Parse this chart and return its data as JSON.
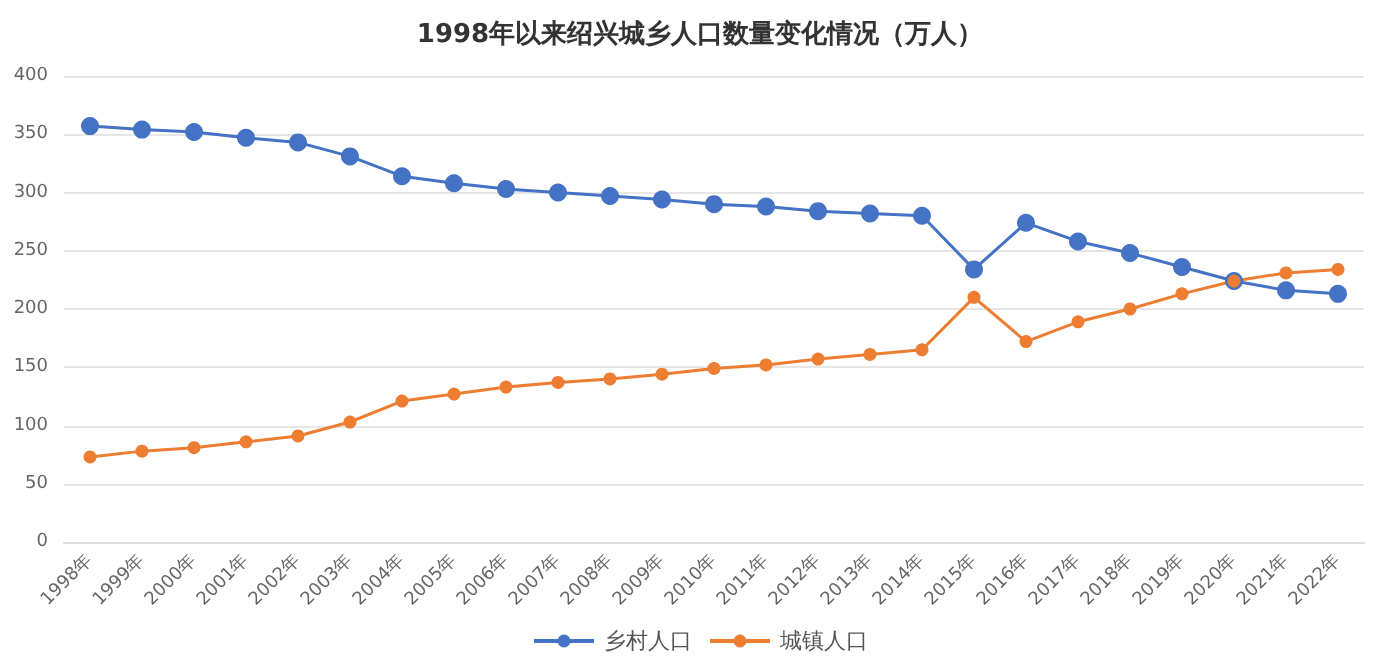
{
  "chart_data": {
    "type": "line",
    "title": "1998年以来绍兴城乡人口数量变化情况（万人）",
    "categories": [
      "1998年",
      "1999年",
      "2000年",
      "2001年",
      "2002年",
      "2003年",
      "2004年",
      "2005年",
      "2006年",
      "2007年",
      "2008年",
      "2009年",
      "2010年",
      "2011年",
      "2012年",
      "2013年",
      "2014年",
      "2015年",
      "2016年",
      "2017年",
      "2018年",
      "2019年",
      "2020年",
      "2021年",
      "2022年"
    ],
    "series": [
      {
        "name": "乡村人口",
        "color": "#4472c4",
        "values": [
          357,
          354,
          352,
          347,
          343,
          331,
          314,
          308,
          303,
          300,
          297,
          294,
          290,
          288,
          284,
          282,
          280,
          234,
          274,
          258,
          248,
          236,
          224,
          216,
          213
        ]
      },
      {
        "name": "城镇人口",
        "color": "#ed7d31",
        "values": [
          73,
          78,
          81,
          86,
          91,
          103,
          121,
          127,
          133,
          137,
          140,
          144,
          149,
          152,
          157,
          161,
          165,
          210,
          172,
          189,
          200,
          213,
          224,
          231,
          234
        ]
      }
    ],
    "ylim": [
      0,
      400
    ],
    "yticks": [
      0,
      50,
      100,
      150,
      200,
      250,
      300,
      350,
      400
    ],
    "grid": "y",
    "legend": "bottom",
    "marker": "circle",
    "line_style": "solid"
  }
}
